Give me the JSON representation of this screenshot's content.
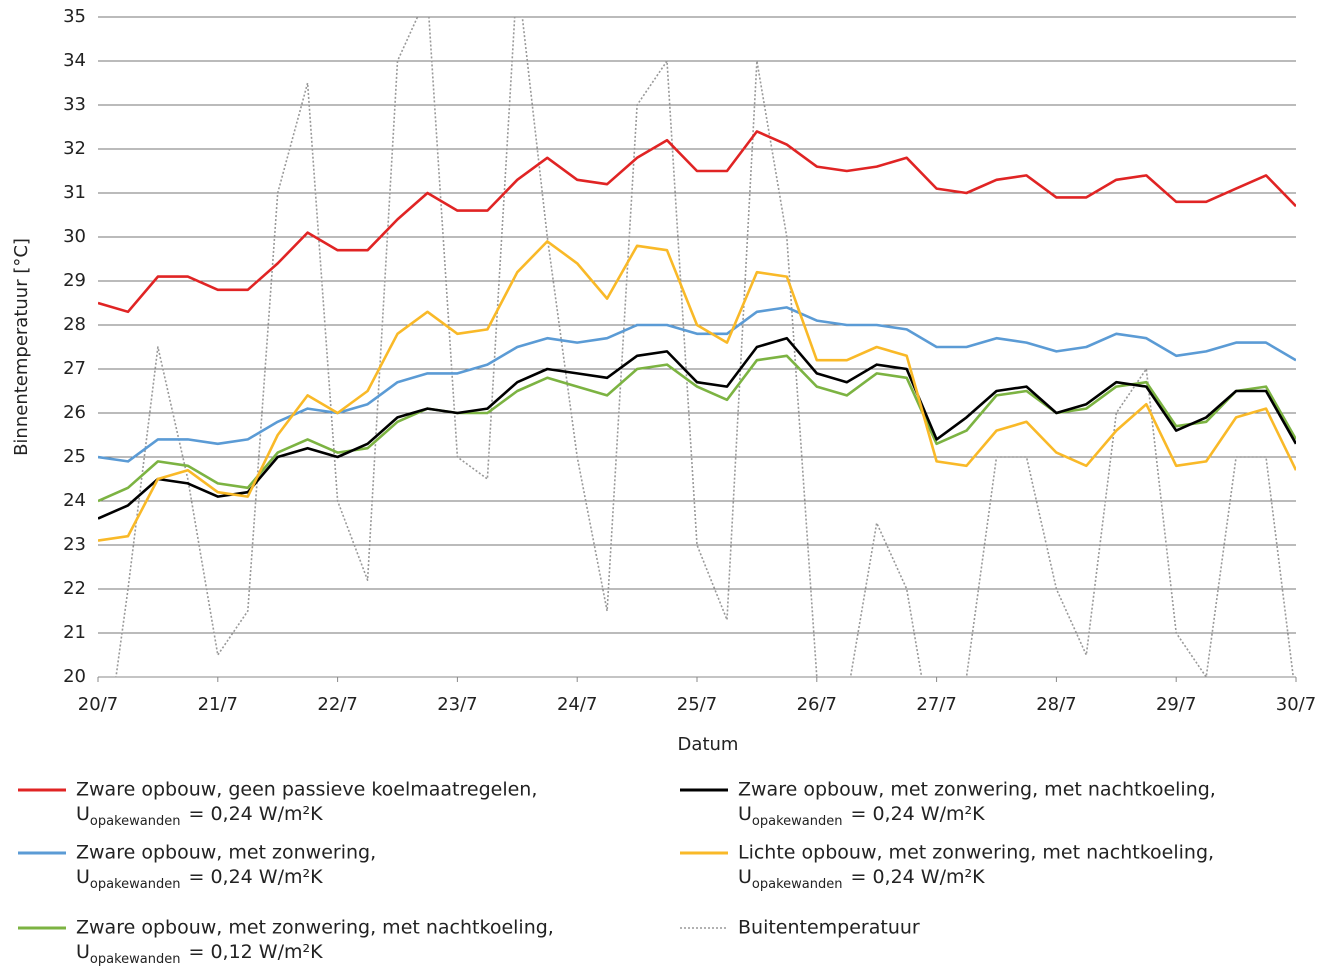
{
  "chart_data": {
    "type": "line",
    "y_label": "Binnentemperatuur [°C]",
    "x_label": "Datum",
    "x": [
      20,
      20.25,
      20.5,
      20.75,
      21,
      21.25,
      21.5,
      21.75,
      22,
      22.25,
      22.5,
      22.75,
      23,
      23.25,
      23.5,
      23.75,
      24,
      24.25,
      24.5,
      24.75,
      25,
      25.25,
      25.5,
      25.75,
      26,
      26.25,
      26.5,
      26.75,
      27,
      27.25,
      27.5,
      27.75,
      28,
      28.25,
      28.5,
      28.75,
      29,
      29.25,
      29.5,
      29.75,
      30
    ],
    "xlim": [
      20,
      30
    ],
    "xticks": [
      {
        "value": 20,
        "label": "20/7"
      },
      {
        "value": 21,
        "label": "21/7"
      },
      {
        "value": 22,
        "label": "22/7"
      },
      {
        "value": 23,
        "label": "23/7"
      },
      {
        "value": 24,
        "label": "24/7"
      },
      {
        "value": 25,
        "label": "25/7"
      },
      {
        "value": 26,
        "label": "26/7"
      },
      {
        "value": 27,
        "label": "27/7"
      },
      {
        "value": 28,
        "label": "28/7"
      },
      {
        "value": 29,
        "label": "29/7"
      },
      {
        "value": 30,
        "label": "30/7"
      }
    ],
    "ylim": [
      20,
      35
    ],
    "yticks": [
      20,
      21,
      22,
      23,
      24,
      25,
      26,
      27,
      28,
      29,
      30,
      31,
      32,
      33,
      34,
      35
    ],
    "grid": true,
    "series": [
      {
        "name": "Zware opbouw, geen passieve koelmaatregelen,",
        "unit_line": [
          "U",
          "opakewanden",
          "= 0,24 W/m²K"
        ],
        "color": "#e02424",
        "dashed": false,
        "values": [
          28.5,
          28.3,
          29.1,
          29.1,
          28.8,
          28.8,
          29.4,
          30.1,
          29.7,
          29.7,
          30.4,
          31.0,
          30.6,
          30.6,
          31.3,
          31.8,
          31.3,
          31.2,
          31.8,
          32.2,
          31.5,
          31.5,
          32.4,
          32.1,
          31.6,
          31.5,
          31.6,
          31.8,
          31.1,
          31.0,
          31.3,
          31.4,
          30.9,
          30.9,
          31.3,
          31.4,
          30.8,
          30.8,
          31.1,
          31.4,
          30.7
        ]
      },
      {
        "name": "Zware opbouw, met zonwering,",
        "unit_line": [
          "U",
          "opakewanden",
          "= 0,24 W/m²K"
        ],
        "color": "#5b9bd5",
        "dashed": false,
        "values": [
          25.0,
          24.9,
          25.4,
          25.4,
          25.3,
          25.4,
          25.8,
          26.1,
          26.0,
          26.2,
          26.7,
          26.9,
          26.9,
          27.1,
          27.5,
          27.7,
          27.6,
          27.7,
          28.0,
          28.0,
          27.8,
          27.8,
          28.3,
          28.4,
          28.1,
          28.0,
          28.0,
          27.9,
          27.5,
          27.5,
          27.7,
          27.6,
          27.4,
          27.5,
          27.8,
          27.7,
          27.3,
          27.4,
          27.6,
          27.6,
          27.2
        ]
      },
      {
        "name": "Zware opbouw, met zonwering, met nachtkoeling,",
        "unit_line": [
          "U",
          "opakewanden",
          "= 0,12 W/m²K"
        ],
        "color": "#7cb342",
        "dashed": false,
        "values": [
          24.0,
          24.3,
          24.9,
          24.8,
          24.4,
          24.3,
          25.1,
          25.4,
          25.1,
          25.2,
          25.8,
          26.1,
          26.0,
          26.0,
          26.5,
          26.8,
          26.6,
          26.4,
          27.0,
          27.1,
          26.6,
          26.3,
          27.2,
          27.3,
          26.6,
          26.4,
          26.9,
          26.8,
          25.3,
          25.6,
          26.4,
          26.5,
          26.0,
          26.1,
          26.6,
          26.7,
          25.7,
          25.8,
          26.5,
          26.6,
          25.4
        ]
      },
      {
        "name": "Zware opbouw, met zonwering, met nachtkoeling,",
        "unit_line": [
          "U",
          "opakewanden",
          "= 0,24 W/m²K"
        ],
        "color": "#000000",
        "dashed": false,
        "values": [
          23.6,
          23.9,
          24.5,
          24.4,
          24.1,
          24.2,
          25.0,
          25.2,
          25.0,
          25.3,
          25.9,
          26.1,
          26.0,
          26.1,
          26.7,
          27.0,
          26.9,
          26.8,
          27.3,
          27.4,
          26.7,
          26.6,
          27.5,
          27.7,
          26.9,
          26.7,
          27.1,
          27.0,
          25.4,
          25.9,
          26.5,
          26.6,
          26.0,
          26.2,
          26.7,
          26.6,
          25.6,
          25.9,
          26.5,
          26.5,
          25.3
        ]
      },
      {
        "name": "Lichte opbouw, met zonwering, met nachtkoeling,",
        "unit_line": [
          "U",
          "opakewanden",
          "= 0,24 W/m²K"
        ],
        "color": "#f9b928",
        "dashed": false,
        "values": [
          23.1,
          23.2,
          24.5,
          24.7,
          24.2,
          24.1,
          25.5,
          26.4,
          26.0,
          26.5,
          27.8,
          28.3,
          27.8,
          27.9,
          29.2,
          29.9,
          29.4,
          28.6,
          29.8,
          29.7,
          28.0,
          27.6,
          29.2,
          29.1,
          27.2,
          27.2,
          27.5,
          27.3,
          24.9,
          24.8,
          25.6,
          25.8,
          25.1,
          24.8,
          25.6,
          26.2,
          24.8,
          24.9,
          25.9,
          26.1,
          24.7
        ]
      },
      {
        "name": "Buitentemperatuur",
        "color": "#999999",
        "dashed": true,
        "values": [
          17,
          22,
          27.5,
          24.5,
          20.5,
          21.5,
          31,
          33.5,
          24,
          22.2,
          34,
          35.5,
          25,
          24.5,
          36,
          30,
          25,
          21.5,
          33,
          34,
          23,
          21.3,
          34,
          30,
          20,
          19.5,
          23.5,
          22,
          18,
          20,
          25,
          25,
          22,
          20.5,
          26,
          27,
          21,
          20,
          25,
          25,
          19.5
        ]
      }
    ]
  }
}
